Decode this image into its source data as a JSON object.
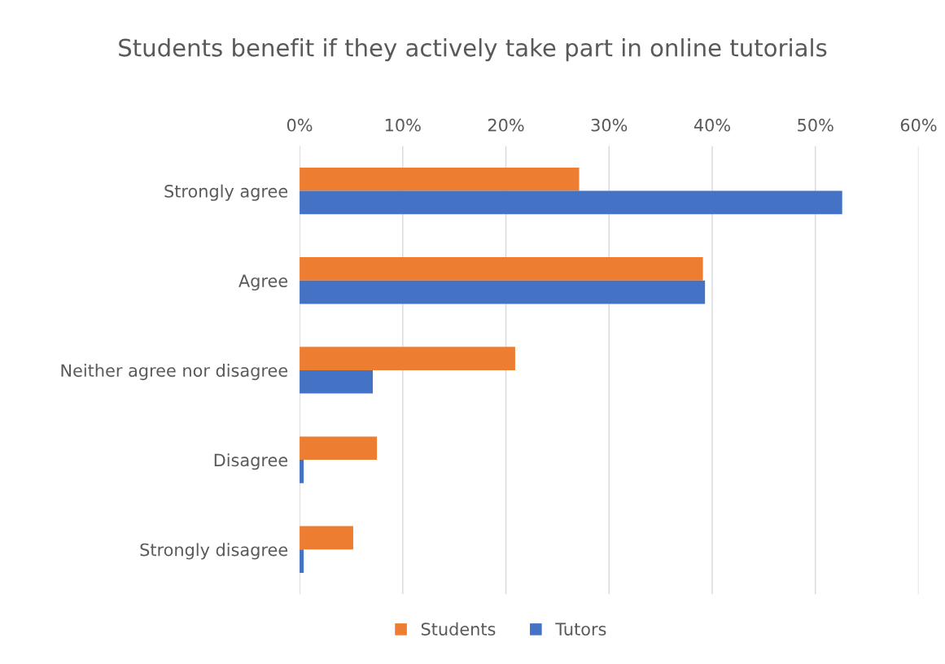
{
  "chart_data": {
    "type": "bar",
    "orientation": "horizontal",
    "title": "Students benefit if they actively take part in online tutorials",
    "categories": [
      "Strongly agree",
      "Agree",
      "Neither agree nor disagree",
      "Disagree",
      "Strongly disagree"
    ],
    "series": [
      {
        "name": "Students",
        "color": "#ed7d31",
        "values": [
          27.1,
          39.1,
          20.9,
          7.5,
          5.2
        ]
      },
      {
        "name": "Tutors",
        "color": "#4472c4",
        "values": [
          52.6,
          39.3,
          7.1,
          0.4,
          0.4
        ]
      }
    ],
    "xlim": [
      0,
      60
    ],
    "xticks": [
      {
        "value": 0,
        "label": "0%"
      },
      {
        "value": 10,
        "label": "10%"
      },
      {
        "value": 20,
        "label": "20%"
      },
      {
        "value": 30,
        "label": "30%"
      },
      {
        "value": 40,
        "label": "40%"
      },
      {
        "value": 50,
        "label": "50%"
      },
      {
        "value": 60,
        "label": "60%"
      }
    ],
    "grid": "x",
    "legend": "bottom"
  }
}
